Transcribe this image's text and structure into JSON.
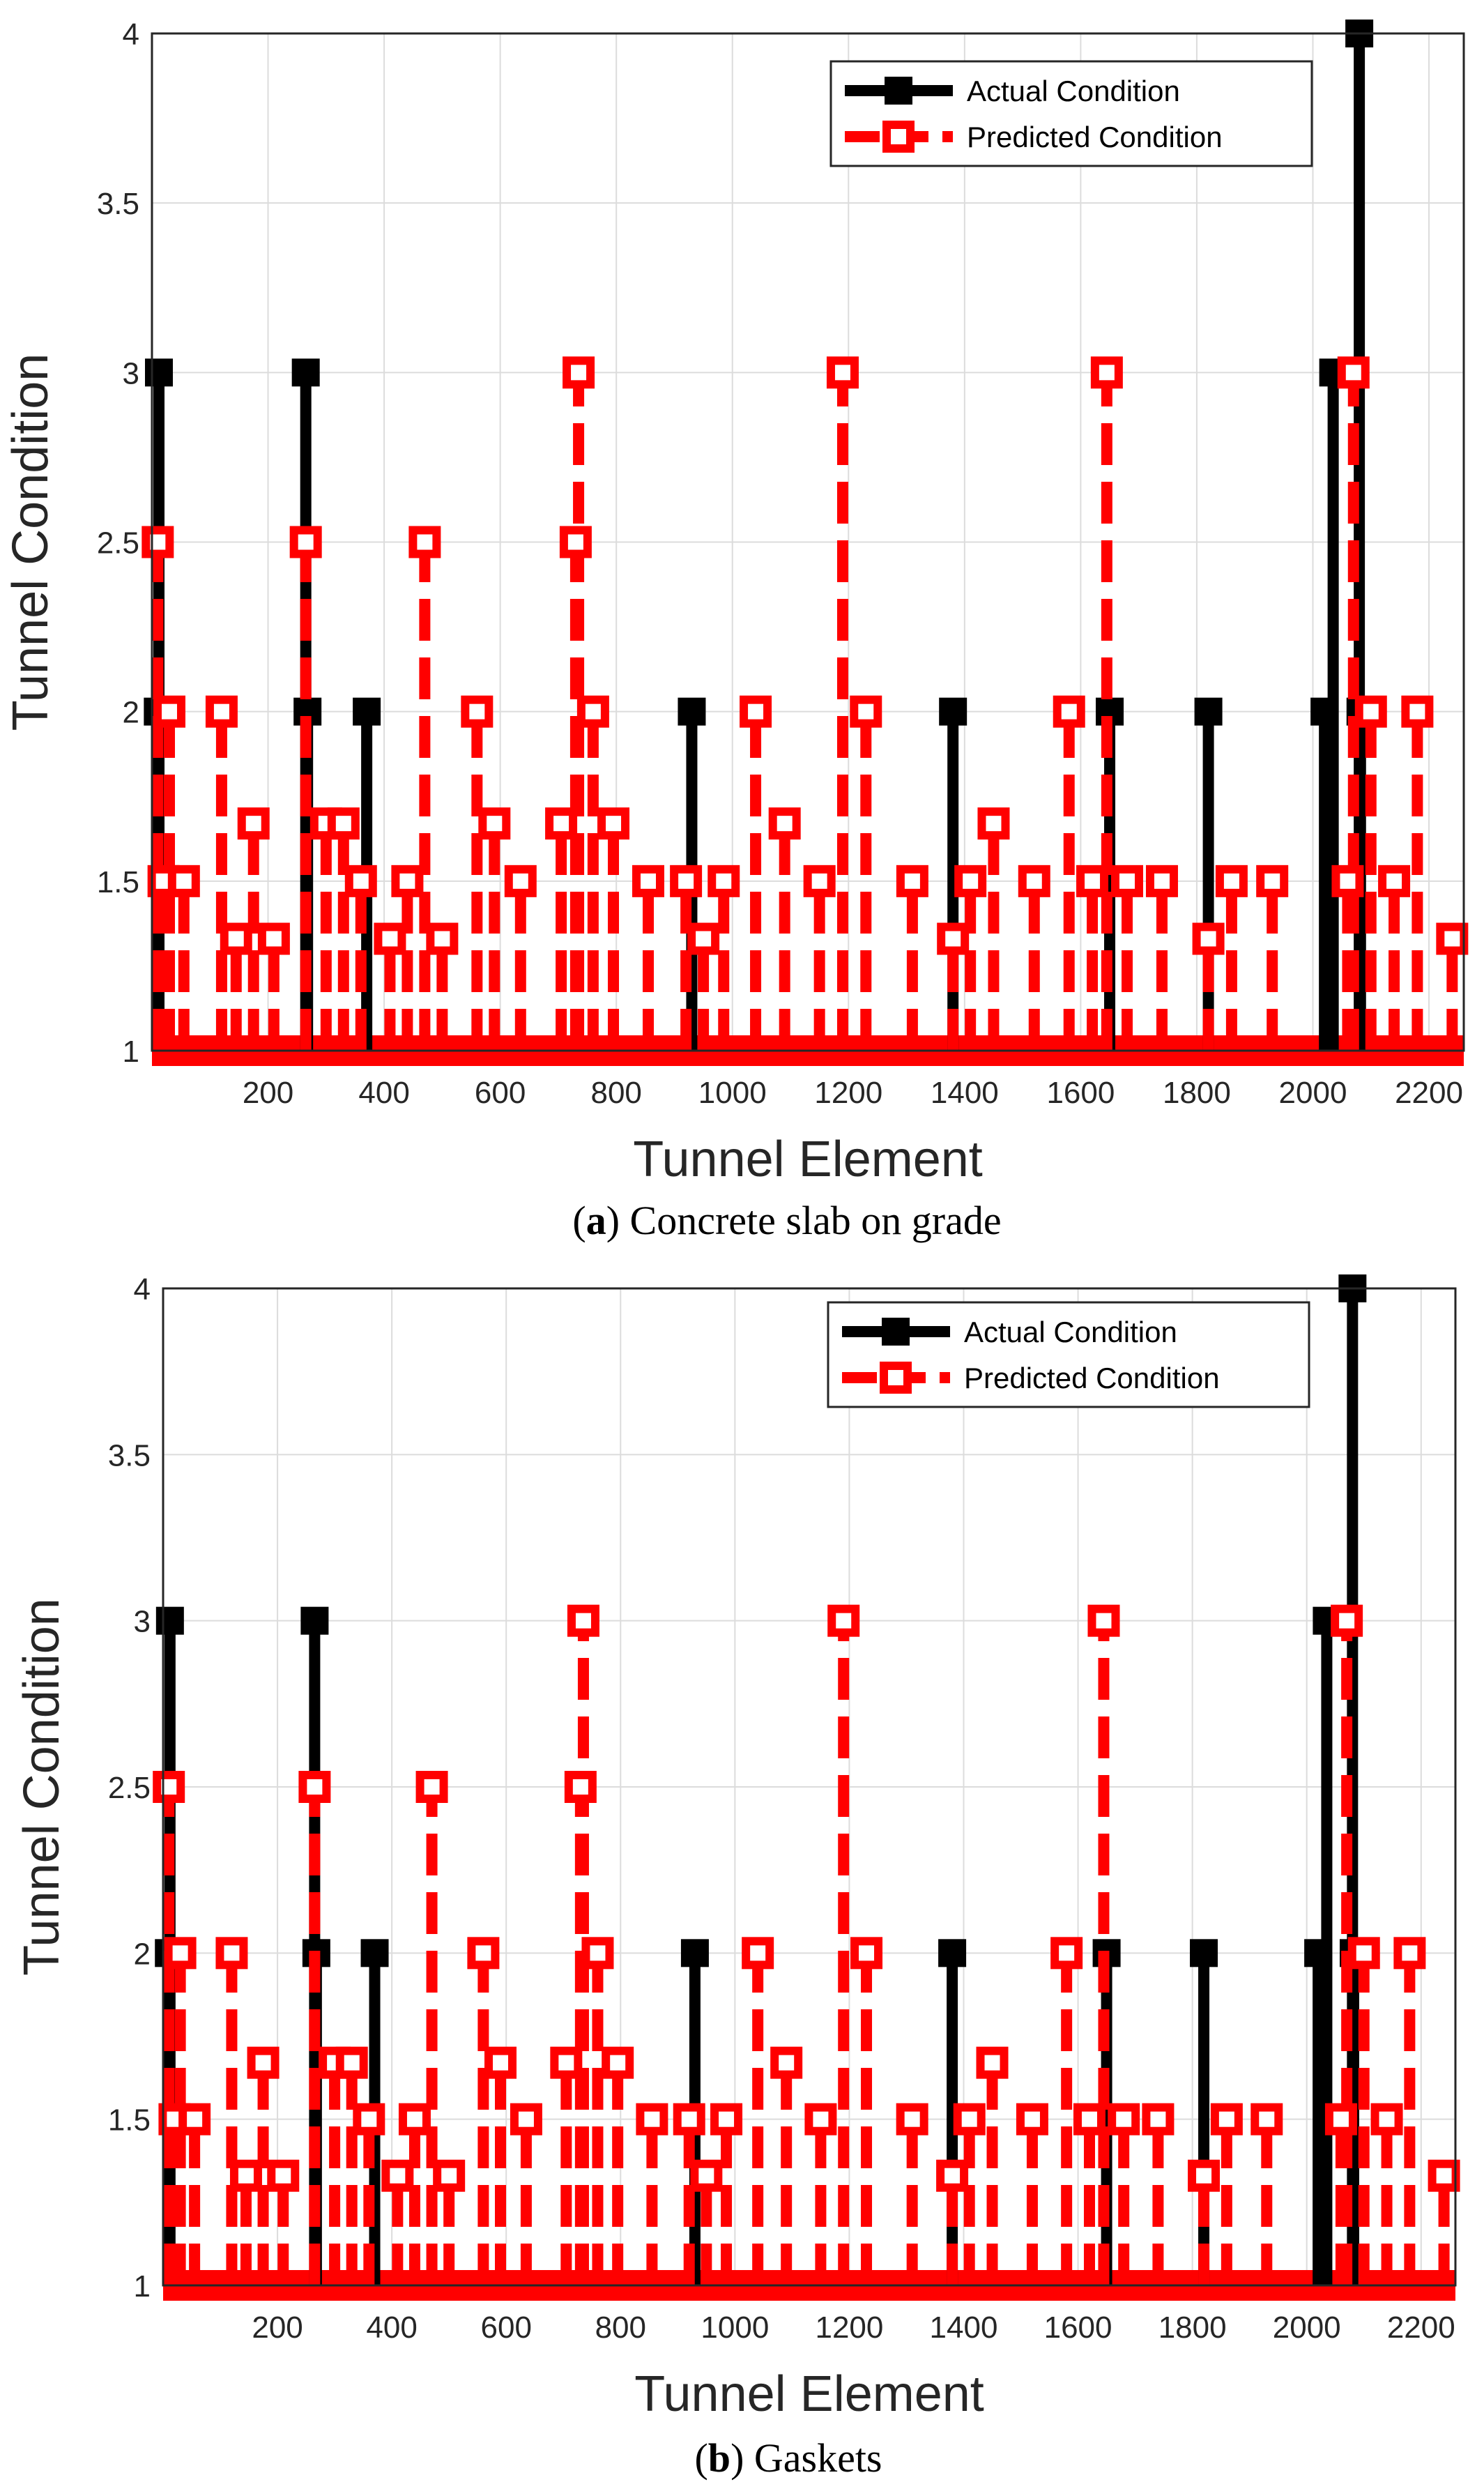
{
  "chart_data": [
    {
      "type": "line",
      "caption": {
        "letter": "a",
        "text": "Concrete slab on grade"
      },
      "xlabel": "Tunnel Element",
      "ylabel": "Tunnel Condition",
      "xlim": [
        0,
        2260
      ],
      "ylim": [
        1,
        4
      ],
      "xticks": [
        "200",
        "400",
        "600",
        "800",
        "1000",
        "1200",
        "1400",
        "1600",
        "1800",
        "2000",
        "2200"
      ],
      "yticks": [
        "1",
        "1.5",
        "2",
        "2.5",
        "3",
        "3.5",
        "4"
      ],
      "grid": true,
      "legend_position": "top-right",
      "series": [
        {
          "name": "Actual Condition",
          "color": "#000000",
          "points": [
            [
              10,
              2
            ],
            [
              12,
              3
            ],
            [
              265,
              3
            ],
            [
              268,
              2
            ],
            [
              370,
              2
            ],
            [
              930,
              2
            ],
            [
              1380,
              2
            ],
            [
              1650,
              2
            ],
            [
              1820,
              2
            ],
            [
              2020,
              2
            ],
            [
              2035,
              3
            ],
            [
              2080,
              4
            ],
            [
              2082,
              2
            ]
          ]
        },
        {
          "name": "Predicted Condition",
          "color": "#ff0000",
          "points": [
            [
              10,
              2.5
            ],
            [
              20,
              1.5
            ],
            [
              30,
              2
            ],
            [
              55,
              1.5
            ],
            [
              120,
              2
            ],
            [
              145,
              1.33
            ],
            [
              175,
              1.67
            ],
            [
              210,
              1.33
            ],
            [
              265,
              2.5
            ],
            [
              300,
              1.67
            ],
            [
              330,
              1.67
            ],
            [
              360,
              1.5
            ],
            [
              410,
              1.33
            ],
            [
              440,
              1.5
            ],
            [
              470,
              2.5
            ],
            [
              500,
              1.33
            ],
            [
              560,
              2
            ],
            [
              590,
              1.67
            ],
            [
              635,
              1.5
            ],
            [
              705,
              1.67
            ],
            [
              730,
              2.5
            ],
            [
              735,
              3
            ],
            [
              760,
              2
            ],
            [
              795,
              1.67
            ],
            [
              855,
              1.5
            ],
            [
              920,
              1.5
            ],
            [
              950,
              1.33
            ],
            [
              985,
              1.5
            ],
            [
              1040,
              2
            ],
            [
              1090,
              1.67
            ],
            [
              1150,
              1.5
            ],
            [
              1190,
              3
            ],
            [
              1230,
              2
            ],
            [
              1310,
              1.5
            ],
            [
              1380,
              1.33
            ],
            [
              1410,
              1.5
            ],
            [
              1450,
              1.67
            ],
            [
              1520,
              1.5
            ],
            [
              1580,
              2
            ],
            [
              1620,
              1.5
            ],
            [
              1645,
              3
            ],
            [
              1680,
              1.5
            ],
            [
              1740,
              1.5
            ],
            [
              1820,
              1.33
            ],
            [
              1860,
              1.5
            ],
            [
              1930,
              1.5
            ],
            [
              2060,
              1.5
            ],
            [
              2070,
              3
            ],
            [
              2100,
              2
            ],
            [
              2140,
              1.5
            ],
            [
              2180,
              2
            ],
            [
              2240,
              1.33
            ]
          ]
        }
      ]
    },
    {
      "type": "line",
      "caption": {
        "letter": "b",
        "text": "Gaskets"
      },
      "xlabel": "Tunnel Element",
      "ylabel": "Tunnel Condition",
      "xlim": [
        0,
        2260
      ],
      "ylim": [
        1,
        4
      ],
      "xticks": [
        "200",
        "400",
        "600",
        "800",
        "1000",
        "1200",
        "1400",
        "1600",
        "1800",
        "2000",
        "2200"
      ],
      "yticks": [
        "1",
        "1.5",
        "2",
        "2.5",
        "3",
        "3.5",
        "4"
      ],
      "grid": true,
      "legend_position": "top-right",
      "series": [
        {
          "name": "Actual Condition",
          "color": "#000000",
          "points": [
            [
              10,
              2
            ],
            [
              12,
              3
            ],
            [
              265,
              3
            ],
            [
              268,
              2
            ],
            [
              370,
              2
            ],
            [
              930,
              2
            ],
            [
              1380,
              2
            ],
            [
              1650,
              2
            ],
            [
              1820,
              2
            ],
            [
              2020,
              2
            ],
            [
              2035,
              3
            ],
            [
              2080,
              4
            ],
            [
              2082,
              2
            ]
          ]
        },
        {
          "name": "Predicted Condition",
          "color": "#ff0000",
          "points": [
            [
              10,
              2.5
            ],
            [
              20,
              1.5
            ],
            [
              30,
              2
            ],
            [
              55,
              1.5
            ],
            [
              120,
              2
            ],
            [
              145,
              1.33
            ],
            [
              175,
              1.67
            ],
            [
              210,
              1.33
            ],
            [
              265,
              2.5
            ],
            [
              300,
              1.67
            ],
            [
              330,
              1.67
            ],
            [
              360,
              1.5
            ],
            [
              410,
              1.33
            ],
            [
              440,
              1.5
            ],
            [
              470,
              2.5
            ],
            [
              500,
              1.33
            ],
            [
              560,
              2
            ],
            [
              590,
              1.67
            ],
            [
              635,
              1.5
            ],
            [
              705,
              1.67
            ],
            [
              730,
              2.5
            ],
            [
              735,
              3
            ],
            [
              760,
              2
            ],
            [
              795,
              1.67
            ],
            [
              855,
              1.5
            ],
            [
              920,
              1.5
            ],
            [
              950,
              1.33
            ],
            [
              985,
              1.5
            ],
            [
              1040,
              2
            ],
            [
              1090,
              1.67
            ],
            [
              1150,
              1.5
            ],
            [
              1190,
              3
            ],
            [
              1230,
              2
            ],
            [
              1310,
              1.5
            ],
            [
              1380,
              1.33
            ],
            [
              1410,
              1.5
            ],
            [
              1450,
              1.67
            ],
            [
              1520,
              1.5
            ],
            [
              1580,
              2
            ],
            [
              1620,
              1.5
            ],
            [
              1645,
              3
            ],
            [
              1680,
              1.5
            ],
            [
              1740,
              1.5
            ],
            [
              1820,
              1.33
            ],
            [
              1860,
              1.5
            ],
            [
              1930,
              1.5
            ],
            [
              2060,
              1.5
            ],
            [
              2070,
              3
            ],
            [
              2100,
              2
            ],
            [
              2140,
              1.5
            ],
            [
              2180,
              2
            ],
            [
              2240,
              1.33
            ]
          ]
        }
      ]
    }
  ]
}
